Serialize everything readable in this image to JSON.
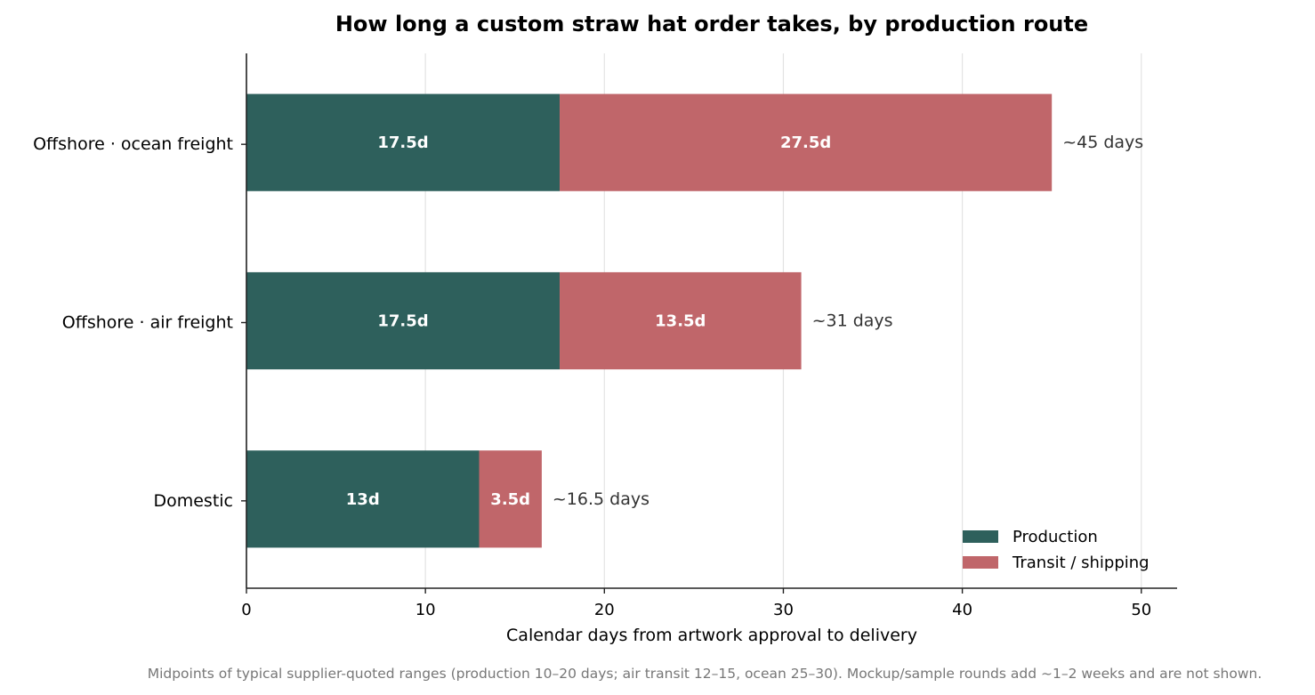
{
  "chart_data": {
    "type": "bar",
    "orientation": "horizontal",
    "stacked": true,
    "title": "How long a custom straw hat order takes, by production route",
    "xlabel": "Calendar days from artwork approval to delivery",
    "ylabel": "",
    "xlim": [
      0,
      52
    ],
    "xticks": [
      0,
      10,
      20,
      30,
      40,
      50
    ],
    "xtick_labels": [
      "0",
      "10",
      "20",
      "30",
      "40",
      "50"
    ],
    "grid": "vertical gridlines",
    "legend_position": "bottom-right",
    "categories": [
      "Offshore · ocean freight",
      "Offshore · air freight",
      "Domestic"
    ],
    "series": [
      {
        "name": "Production",
        "color": "#2e605c",
        "values": [
          17.5,
          17.5,
          13
        ],
        "labels": [
          "17.5d",
          "17.5d",
          "13d"
        ]
      },
      {
        "name": "Transit / shipping",
        "color": "#c0666a",
        "values": [
          27.5,
          13.5,
          3.5
        ],
        "labels": [
          "27.5d",
          "13.5d",
          "3.5d"
        ]
      }
    ],
    "totals": [
      45,
      31,
      16.5
    ],
    "total_labels": [
      "~45 days",
      "~31 days",
      "~16.5 days"
    ],
    "footnote": "Midpoints of typical supplier-quoted ranges (production 10–20 days; air transit 12–15, ocean 25–30). Mockup/sample rounds add ~1–2 weeks and are not shown."
  }
}
